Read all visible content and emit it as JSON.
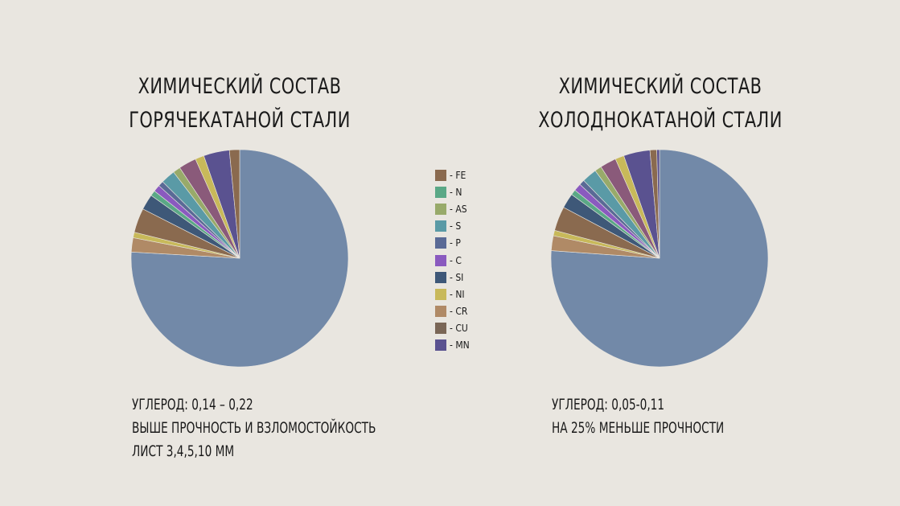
{
  "titles": {
    "left": [
      "ХИМИЧЕСКИЙ СОСТАВ",
      "ГОРЯЧЕКАТАНОЙ СТАЛИ"
    ],
    "right": [
      "ХИМИЧЕСКИЙ СОСТАВ",
      "ХОЛОДНОКАТАНОЙ СТАЛИ"
    ]
  },
  "legend": [
    {
      "label": "- FE",
      "color": "#8a6a4f"
    },
    {
      "label": "- N",
      "color": "#5aa886"
    },
    {
      "label": "- AS",
      "color": "#98aa6a"
    },
    {
      "label": "- S",
      "color": "#5a9aa6"
    },
    {
      "label": "- P",
      "color": "#5a6a96"
    },
    {
      "label": "- C",
      "color": "#8a5abf"
    },
    {
      "label": "- SI",
      "color": "#3e5878"
    },
    {
      "label": "- NI",
      "color": "#c8b95a"
    },
    {
      "label": "- CR",
      "color": "#b08a66"
    },
    {
      "label": "- CU",
      "color": "#7a6656"
    },
    {
      "label": "- MN",
      "color": "#5a5290"
    }
  ],
  "notes": {
    "left": [
      "УГЛЕРОД: 0,14 – 0,22",
      "ВЫШЕ ПРОЧНОСТЬ И ВЗЛОМОСТОЙКОСТЬ",
      "ЛИСТ 3,4,5,10 ММ"
    ],
    "right": [
      "УГЛЕРОД: 0,05-0,11",
      "НА 25% МЕНЬШЕ ПРОЧНОСТИ"
    ]
  },
  "chart_data": [
    {
      "type": "pie",
      "title": "ХИМИЧЕСКИЙ СОСТАВ ГОРЯЧЕКАТАНОЙ СТАЛИ",
      "slices": [
        {
          "color": "#7289a8",
          "value": 75
        },
        {
          "color": "#b08a66",
          "value": 2.1
        },
        {
          "color": "#c8b95a",
          "value": 0.8
        },
        {
          "color": "#8a6a4f",
          "value": 3.6
        },
        {
          "color": "#3e5878",
          "value": 2.3
        },
        {
          "color": "#5aa886",
          "value": 0.8
        },
        {
          "color": "#8a5abf",
          "value": 1.0
        },
        {
          "color": "#5a6a96",
          "value": 0.8
        },
        {
          "color": "#5a9aa6",
          "value": 2.1
        },
        {
          "color": "#98aa6a",
          "value": 1.1
        },
        {
          "color": "#8a5a7a",
          "value": 2.6
        },
        {
          "color": "#c8b95a",
          "value": 1.3
        },
        {
          "color": "#5a5290",
          "value": 3.8
        },
        {
          "color": "#8a6a4f",
          "value": 1.5
        }
      ]
    },
    {
      "type": "pie",
      "title": "ХИМИЧЕСКИЙ СОСТАВ ХОЛОДНОКАТАНОЙ СТАЛИ",
      "slices": [
        {
          "color": "#7289a8",
          "value": 75.5
        },
        {
          "color": "#b08a66",
          "value": 2.2
        },
        {
          "color": "#c8b95a",
          "value": 0.8
        },
        {
          "color": "#8a6a4f",
          "value": 3.6
        },
        {
          "color": "#3e5878",
          "value": 2.2
        },
        {
          "color": "#5aa886",
          "value": 0.8
        },
        {
          "color": "#8a5abf",
          "value": 1.1
        },
        {
          "color": "#5a6a96",
          "value": 0.8
        },
        {
          "color": "#5a9aa6",
          "value": 2.2
        },
        {
          "color": "#98aa6a",
          "value": 1.0
        },
        {
          "color": "#8a5a7a",
          "value": 2.4
        },
        {
          "color": "#c8b95a",
          "value": 1.3
        },
        {
          "color": "#5a5290",
          "value": 3.9
        },
        {
          "color": "#8a6a4f",
          "value": 1.0
        },
        {
          "color": "#5a5290",
          "value": 0.4
        }
      ]
    }
  ]
}
